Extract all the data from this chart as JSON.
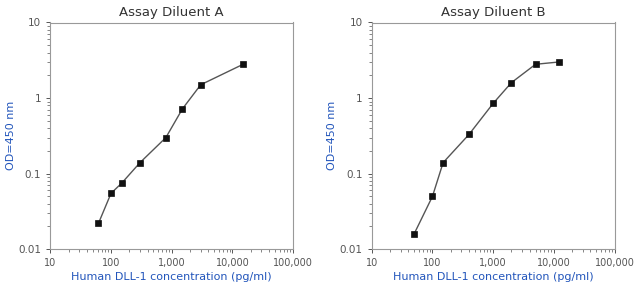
{
  "title_A": "Assay Diluent A",
  "title_B": "Assay Diluent B",
  "xlabel": "Human DLL-1 concentration (pg/ml)",
  "ylabel": "OD=450 nm",
  "xlim": [
    10,
    100000
  ],
  "ylim": [
    0.01,
    10
  ],
  "x_ticks": [
    10,
    100,
    1000,
    10000,
    100000
  ],
  "x_tick_labels": [
    "10",
    "100",
    "1,000",
    "10,000",
    "100,000"
  ],
  "y_ticks": [
    0.01,
    0.1,
    1,
    10
  ],
  "y_tick_labels": [
    "0.01",
    "0.1",
    "1",
    "10"
  ],
  "data_A_x": [
    62,
    100,
    150,
    300,
    800,
    1500,
    3000,
    15000
  ],
  "data_A_y": [
    0.022,
    0.055,
    0.075,
    0.14,
    0.3,
    0.72,
    1.5,
    2.8
  ],
  "data_B_x": [
    50,
    100,
    150,
    400,
    1000,
    2000,
    5000,
    12000
  ],
  "data_B_y": [
    0.016,
    0.05,
    0.14,
    0.33,
    0.85,
    1.6,
    2.8,
    3.0
  ],
  "line_color": "#555555",
  "marker_color": "#111111",
  "label_color": "#2255bb",
  "title_color": "#333333",
  "frame_color": "#999999",
  "tick_color": "#555555",
  "background_color": "#ffffff"
}
